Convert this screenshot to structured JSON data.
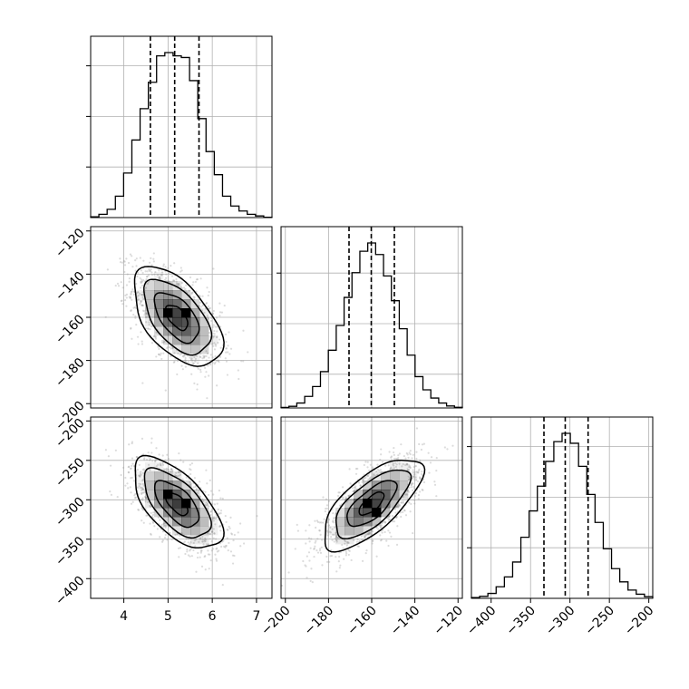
{
  "chart_data": {
    "type": "corner",
    "parameters": [
      {
        "range": [
          3.25,
          7.35
        ],
        "ticks": [
          "4",
          "5",
          "6",
          "7"
        ],
        "tick_values": [
          4,
          5,
          6,
          7
        ],
        "hist_counts": [
          0.005,
          0.02,
          0.05,
          0.13,
          0.27,
          0.47,
          0.66,
          0.82,
          0.98,
          1.0,
          0.98,
          0.97,
          0.83,
          0.6,
          0.4,
          0.26,
          0.13,
          0.07,
          0.04,
          0.02,
          0.01,
          0.002
        ],
        "quantiles": [
          4.6,
          5.15,
          5.7
        ],
        "hist_yticks": [
          0.3,
          0.6,
          0.9
        ]
      },
      {
        "range": [
          -202,
          -118
        ],
        "ticks": [
          "−120",
          "−140",
          "−160",
          "−180",
          "−200"
        ],
        "tick_values": [
          -120,
          -140,
          -160,
          -180,
          -200
        ],
        "hist_counts": [
          0.003,
          0.01,
          0.03,
          0.07,
          0.13,
          0.22,
          0.35,
          0.5,
          0.67,
          0.82,
          0.95,
          1.0,
          0.93,
          0.8,
          0.65,
          0.48,
          0.32,
          0.19,
          0.11,
          0.06,
          0.03,
          0.012,
          0.004
        ],
        "quantiles": [
          -170.5,
          -160.2,
          -149.5
        ],
        "hist_yticks": [
          0.2,
          0.5,
          0.8
        ]
      },
      {
        "range": [
          -425,
          -195
        ],
        "ticks": [
          "−400",
          "−350",
          "−300",
          "−250",
          "−200"
        ],
        "tick_values": [
          -400,
          -350,
          -300,
          -250,
          -200
        ],
        "hist_counts": [
          0.005,
          0.012,
          0.03,
          0.07,
          0.13,
          0.22,
          0.37,
          0.53,
          0.68,
          0.83,
          0.95,
          1.0,
          0.94,
          0.8,
          0.63,
          0.46,
          0.3,
          0.18,
          0.1,
          0.05,
          0.025,
          0.01
        ],
        "quantiles": [
          -333,
          -306,
          -277
        ],
        "hist_yticks": [
          0.3,
          0.6,
          0.9
        ]
      }
    ],
    "pairs": [
      {
        "x_param": 0,
        "y_param": 1,
        "mean": [
          5.2,
          -160
        ],
        "sd": [
          0.5,
          11.5
        ],
        "corr": -0.55,
        "peak_cells": [
          [
            5.0,
            -156
          ],
          [
            5.4,
            -160
          ]
        ]
      },
      {
        "x_param": 0,
        "y_param": 2,
        "mean": [
          5.2,
          -305
        ],
        "sd": [
          0.5,
          29
        ],
        "corr": -0.62,
        "peak_cells": [
          [
            4.95,
            -290
          ],
          [
            5.35,
            -305
          ]
        ]
      },
      {
        "x_param": 1,
        "y_param": 2,
        "mean": [
          -160,
          -305
        ],
        "sd": [
          11.5,
          29
        ],
        "corr": 0.7,
        "peak_cells": [
          [
            -161,
            -303
          ],
          [
            -160,
            -315
          ]
        ]
      }
    ],
    "contour_levels_sigma": [
      0.5,
      1.0,
      1.5,
      2.0
    ],
    "grid": true,
    "colors": {
      "line": "#000000",
      "points": "#9a9a9a",
      "grid": "#b0b0b0",
      "density": "#000000"
    }
  }
}
